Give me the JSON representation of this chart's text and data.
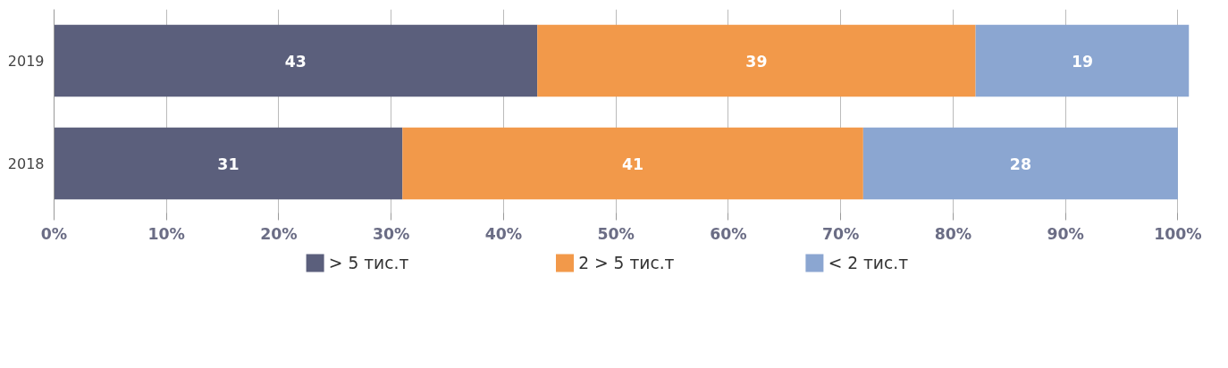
{
  "chart_data": {
    "type": "bar",
    "orientation": "horizontal",
    "stacked": true,
    "data_labels": true,
    "categories": [
      "2019",
      "2018"
    ],
    "series": [
      {
        "name": "> 5 тис.т",
        "color": "#5b5f7c",
        "values": [
          43,
          31
        ]
      },
      {
        "name": "2 > 5 тис.т",
        "color": "#f2994a",
        "values": [
          39,
          41
        ]
      },
      {
        "name": "< 2 тис.т",
        "color": "#8ba6d1",
        "values": [
          19,
          28
        ]
      }
    ],
    "xlim": [
      0,
      101
    ],
    "xticks": [
      {
        "value": 0,
        "label": "0%"
      },
      {
        "value": 10,
        "label": "10%"
      },
      {
        "value": 20,
        "label": "20%"
      },
      {
        "value": 30,
        "label": "30%"
      },
      {
        "value": 40,
        "label": "40%"
      },
      {
        "value": 50,
        "label": "50%"
      },
      {
        "value": 60,
        "label": "60%"
      },
      {
        "value": 70,
        "label": "70%"
      },
      {
        "value": 80,
        "label": "80%"
      },
      {
        "value": 90,
        "label": "90%"
      },
      {
        "value": 100,
        "label": "100%"
      }
    ],
    "grid": "x",
    "legend": "bottom"
  }
}
